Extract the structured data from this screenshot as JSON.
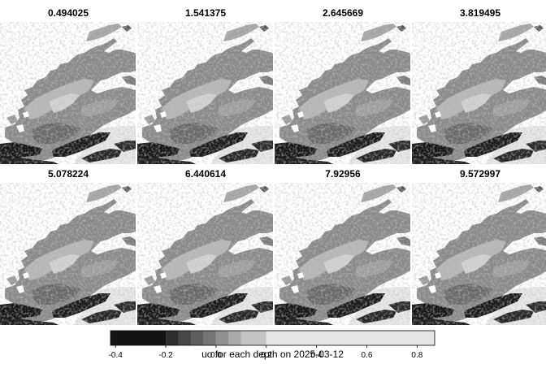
{
  "chart_data": {
    "type": "heatmap",
    "colormap": "greyscale",
    "panels": [
      {
        "title": "0.494025"
      },
      {
        "title": "1.541375"
      },
      {
        "title": "2.645669"
      },
      {
        "title": "3.819495"
      },
      {
        "title": "5.078224"
      },
      {
        "title": "6.440614"
      },
      {
        "title": "7.92956"
      },
      {
        "title": "9.572997"
      }
    ],
    "colorbar": {
      "title": "uo for each depth on 2025-03-12",
      "ticks": [
        "-0.4",
        "-0.2",
        "0.0",
        "0.2",
        "0.4",
        "0.6",
        "0.8"
      ],
      "tick_values": [
        -0.4,
        -0.2,
        0.0,
        0.2,
        0.4,
        0.6,
        0.8
      ],
      "range": [
        -0.42,
        0.87
      ],
      "levels": [
        {
          "from": -0.42,
          "to": -0.2,
          "color": "#141414"
        },
        {
          "from": -0.2,
          "to": -0.15,
          "color": "#2e2e2e"
        },
        {
          "from": -0.15,
          "to": -0.1,
          "color": "#474747"
        },
        {
          "from": -0.1,
          "to": -0.05,
          "color": "#5e5e5e"
        },
        {
          "from": -0.05,
          "to": 0.0,
          "color": "#767676"
        },
        {
          "from": 0.0,
          "to": 0.05,
          "color": "#8f8f8f"
        },
        {
          "from": 0.05,
          "to": 0.1,
          "color": "#a9a9a9"
        },
        {
          "from": 0.1,
          "to": 0.2,
          "color": "#c4c4c4"
        },
        {
          "from": 0.2,
          "to": 0.87,
          "color": "#e6e6e6"
        }
      ]
    }
  }
}
